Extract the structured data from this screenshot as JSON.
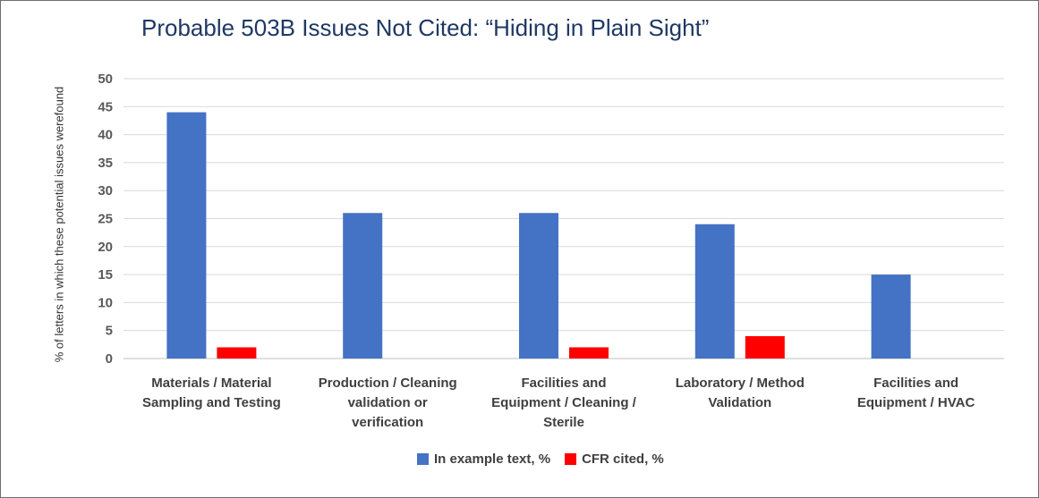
{
  "chart_data": {
    "type": "bar",
    "title": "Probable 503B Issues Not Cited: “Hiding in Plain Sight”",
    "ylabel": "% of letters in which these potential issues werefound",
    "xlabel": "",
    "ylim": [
      0,
      50
    ],
    "yticks": [
      0,
      5,
      10,
      15,
      20,
      25,
      30,
      35,
      40,
      45,
      50
    ],
    "grid": true,
    "legend_position": "bottom",
    "categories": [
      [
        "Materials / Material",
        "Sampling and Testing"
      ],
      [
        "Production / Cleaning",
        "validation or",
        "verification"
      ],
      [
        "Facilities and",
        "Equipment / Cleaning /",
        "Sterile"
      ],
      [
        "Laboratory / Method",
        "Validation"
      ],
      [
        "Facilities and",
        "Equipment / HVAC"
      ]
    ],
    "series": [
      {
        "name": "In example text, %",
        "color": "#4472c4",
        "values": [
          44,
          26,
          26,
          24,
          15
        ]
      },
      {
        "name": "CFR cited, %",
        "color": "#ff0000",
        "values": [
          2,
          0,
          2,
          4,
          0
        ]
      }
    ]
  }
}
